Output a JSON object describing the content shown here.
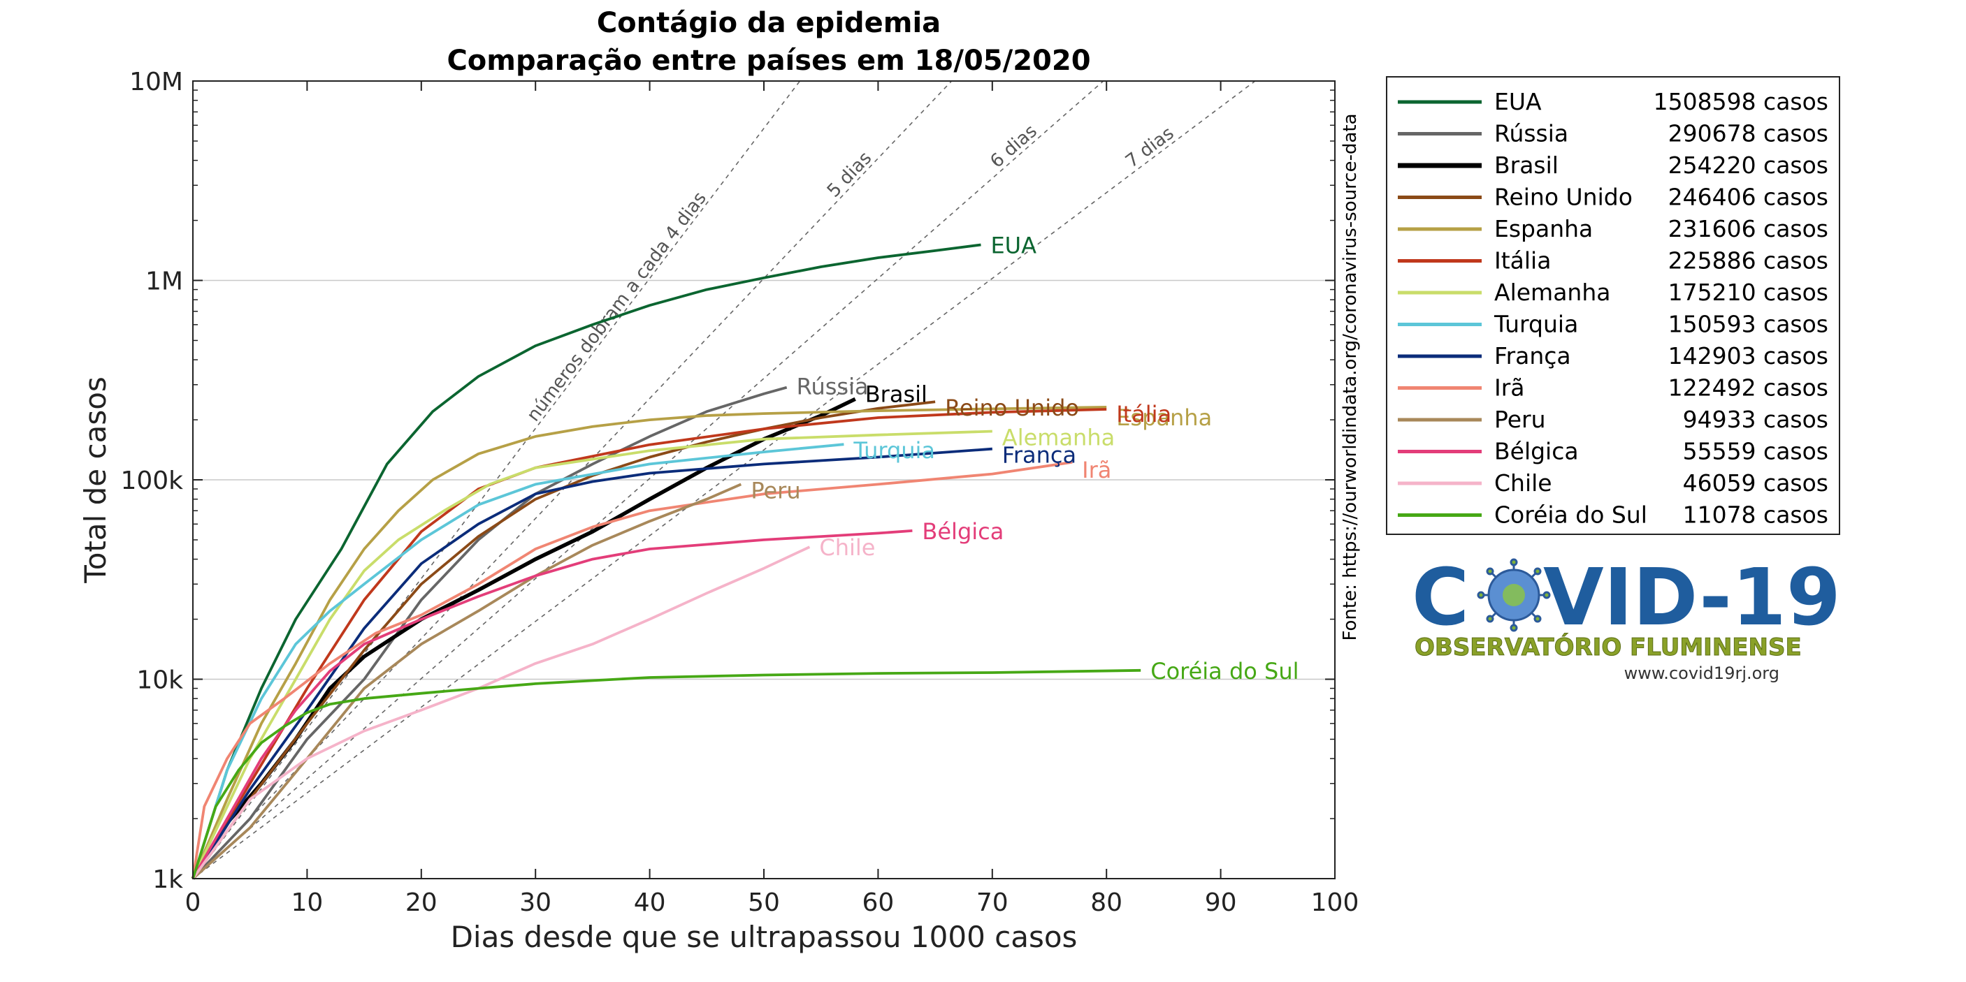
{
  "chart_data": {
    "type": "line",
    "title": "Contágio da epidemia",
    "subtitle": "Comparação entre países em 18/05/2020",
    "xlabel": "Dias desde que se ultrapassou 1000 casos",
    "ylabel": "Total de casos",
    "xlim": [
      0,
      100
    ],
    "ylim": [
      1000,
      10000000
    ],
    "yscale": "log",
    "xticks": [
      "0",
      "10",
      "20",
      "30",
      "40",
      "50",
      "60",
      "70",
      "80",
      "90",
      "100"
    ],
    "yticks": [
      {
        "value": 1000,
        "label": "1k"
      },
      {
        "value": 10000,
        "label": "10k"
      },
      {
        "value": 100000,
        "label": "100k"
      },
      {
        "value": 1000000,
        "label": "1M"
      },
      {
        "value": 10000000,
        "label": "10M"
      }
    ],
    "grid": "horizontal at major y ticks",
    "legend_position": "right, outside plot",
    "source": "Fonte: https://ourworldindata.org/coronavirus-source-data",
    "doubling_lines": [
      {
        "days": 4,
        "label": "números dobram a cada 4 dias"
      },
      {
        "days": 5,
        "label": "5 dias"
      },
      {
        "days": 6,
        "label": "6 dias"
      },
      {
        "days": 7,
        "label": "7 dias"
      }
    ],
    "series": [
      {
        "name": "EUA",
        "casos": "1508598 casos",
        "color": "#0b6530",
        "x": [
          0,
          3,
          6,
          9,
          13,
          17,
          21,
          25,
          30,
          35,
          40,
          45,
          50,
          55,
          60,
          65,
          69
        ],
        "y": [
          1000,
          3500,
          9000,
          20000,
          45000,
          120000,
          220000,
          330000,
          470000,
          600000,
          750000,
          900000,
          1030000,
          1170000,
          1300000,
          1410000,
          1508598
        ]
      },
      {
        "name": "Rússia",
        "casos": "290678 casos",
        "color": "#666666",
        "x": [
          0,
          5,
          10,
          15,
          20,
          25,
          30,
          35,
          40,
          45,
          50,
          52
        ],
        "y": [
          1000,
          2000,
          5000,
          10000,
          25000,
          50000,
          85000,
          120000,
          165000,
          220000,
          270000,
          290678
        ]
      },
      {
        "name": "Brasil",
        "casos": "254220 casos",
        "color": "#000000",
        "x": [
          0,
          3,
          6,
          9,
          12,
          15,
          20,
          25,
          30,
          35,
          40,
          45,
          50,
          55,
          58
        ],
        "y": [
          1000,
          1900,
          3000,
          5000,
          9000,
          13000,
          20000,
          28000,
          40000,
          55000,
          80000,
          115000,
          160000,
          210000,
          254220
        ]
      },
      {
        "name": "Reino Unido",
        "casos": "246406 casos",
        "color": "#8b4a17",
        "x": [
          0,
          5,
          10,
          15,
          20,
          25,
          30,
          35,
          40,
          45,
          50,
          55,
          60,
          65
        ],
        "y": [
          1000,
          2500,
          6000,
          14000,
          30000,
          52000,
          80000,
          105000,
          130000,
          155000,
          180000,
          205000,
          228000,
          246406
        ]
      },
      {
        "name": "Espanha",
        "casos": "231606 casos",
        "color": "#b6a046",
        "x": [
          0,
          3,
          6,
          9,
          12,
          15,
          18,
          21,
          25,
          30,
          35,
          40,
          45,
          50,
          60,
          70,
          80
        ],
        "y": [
          1000,
          2500,
          6000,
          12000,
          25000,
          45000,
          70000,
          100000,
          135000,
          165000,
          185000,
          200000,
          210000,
          215000,
          222000,
          227000,
          231606
        ]
      },
      {
        "name": "Itália",
        "casos": "225886 casos",
        "color": "#c0381c",
        "x": [
          0,
          5,
          10,
          15,
          20,
          25,
          30,
          40,
          50,
          60,
          70,
          80
        ],
        "y": [
          1000,
          3000,
          9000,
          25000,
          55000,
          90000,
          115000,
          150000,
          180000,
          205000,
          218000,
          225886
        ]
      },
      {
        "name": "Alemanha",
        "casos": "175210 casos",
        "color": "#c9dd6a",
        "x": [
          0,
          5,
          9,
          12,
          15,
          18,
          22,
          26,
          30,
          40,
          50,
          60,
          70
        ],
        "y": [
          1000,
          4000,
          10000,
          20000,
          35000,
          50000,
          70000,
          95000,
          115000,
          140000,
          160000,
          168000,
          175210
        ]
      },
      {
        "name": "Turquia",
        "casos": "150593 casos",
        "color": "#5cc6d8",
        "x": [
          0,
          3,
          6,
          9,
          12,
          15,
          20,
          25,
          30,
          40,
          50,
          57
        ],
        "y": [
          1000,
          3500,
          8000,
          15000,
          22000,
          30000,
          50000,
          75000,
          95000,
          120000,
          138000,
          150593
        ]
      },
      {
        "name": "França",
        "casos": "142903 casos",
        "color": "#0b2c7a",
        "x": [
          0,
          5,
          10,
          15,
          20,
          25,
          30,
          35,
          40,
          50,
          60,
          70
        ],
        "y": [
          1000,
          2800,
          7000,
          18000,
          38000,
          60000,
          85000,
          98000,
          108000,
          120000,
          130000,
          142903
        ]
      },
      {
        "name": "Irã",
        "casos": "122492 casos",
        "color": "#f08572",
        "x": [
          0,
          1,
          3,
          5,
          8,
          12,
          16,
          20,
          25,
          30,
          35,
          40,
          50,
          60,
          70,
          77
        ],
        "y": [
          1000,
          2300,
          4000,
          6000,
          8000,
          12000,
          17000,
          21000,
          30000,
          45000,
          58000,
          70000,
          85000,
          95000,
          107000,
          122492
        ]
      },
      {
        "name": "Peru",
        "casos": "94933 casos",
        "color": "#a8885a",
        "x": [
          0,
          5,
          10,
          15,
          20,
          25,
          30,
          35,
          40,
          45,
          48
        ],
        "y": [
          1000,
          1800,
          4000,
          9000,
          15000,
          22000,
          33000,
          47000,
          62000,
          80000,
          94933
        ]
      },
      {
        "name": "Bélgica",
        "casos": "55559 casos",
        "color": "#e33d79",
        "x": [
          0,
          3,
          6,
          9,
          12,
          15,
          20,
          25,
          30,
          35,
          40,
          50,
          60,
          63
        ],
        "y": [
          1000,
          2000,
          4000,
          7000,
          11000,
          15000,
          20000,
          26000,
          33000,
          40000,
          45000,
          50000,
          54000,
          55559
        ]
      },
      {
        "name": "Chile",
        "casos": "46059 casos",
        "color": "#f5b3c9",
        "x": [
          0,
          5,
          10,
          15,
          20,
          25,
          30,
          35,
          40,
          45,
          50,
          54
        ],
        "y": [
          1000,
          2500,
          4000,
          5500,
          7000,
          9000,
          12000,
          15000,
          20000,
          27000,
          36000,
          46059
        ]
      },
      {
        "name": "Coréia do Sul",
        "casos": "11078 casos",
        "color": "#46a815",
        "x": [
          0,
          2,
          4,
          6,
          8,
          10,
          12,
          15,
          20,
          25,
          30,
          40,
          50,
          60,
          70,
          83
        ],
        "y": [
          1000,
          2300,
          3500,
          4800,
          5800,
          6800,
          7500,
          8000,
          8500,
          9000,
          9500,
          10200,
          10500,
          10700,
          10800,
          11078
        ]
      }
    ]
  },
  "logo": {
    "covid_left": "C",
    "covid_right": "VID-19",
    "subtitle": "OBSERVATÓRIO FLUMINENSE",
    "url": "www.covid19rj.org"
  }
}
